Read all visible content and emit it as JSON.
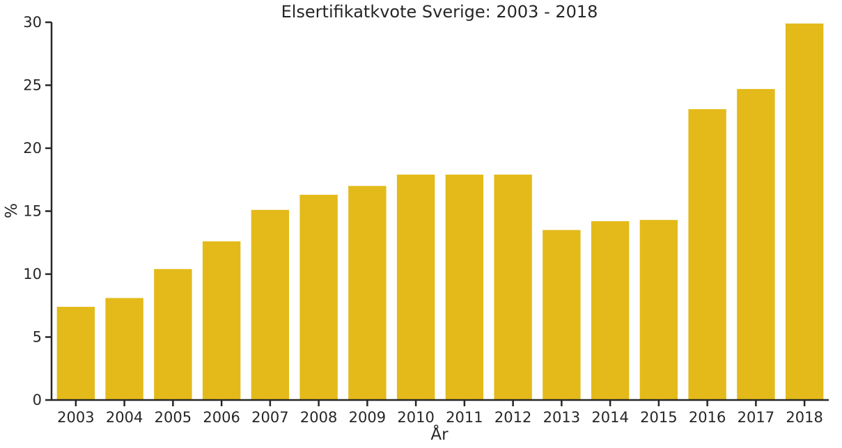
{
  "chart_data": {
    "type": "bar",
    "title": "Elsertifikatkvote Sverige: 2003 - 2018",
    "xlabel": "År",
    "ylabel": "%",
    "categories": [
      "2003",
      "2004",
      "2005",
      "2006",
      "2007",
      "2008",
      "2009",
      "2010",
      "2011",
      "2012",
      "2013",
      "2014",
      "2015",
      "2016",
      "2017",
      "2018"
    ],
    "values": [
      7.4,
      8.1,
      10.4,
      12.6,
      15.1,
      16.3,
      17.0,
      17.9,
      17.9,
      17.9,
      13.5,
      14.2,
      14.3,
      23.1,
      24.7,
      29.9
    ],
    "ylim": [
      0,
      30
    ],
    "yticks": [
      0,
      5,
      10,
      15,
      20,
      25,
      30
    ],
    "bar_color": "#E3BA1A",
    "axis_color": "#262626",
    "grid": false
  }
}
